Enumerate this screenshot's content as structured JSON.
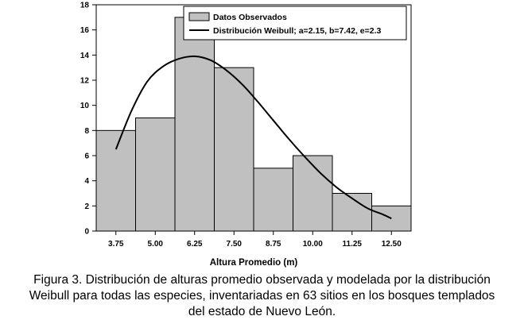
{
  "chart_data": {
    "type": "bar",
    "xlabel": "Altura Promedio (m)",
    "ylabel": "",
    "ylim": [
      0,
      18
    ],
    "yticks": [
      0,
      2,
      4,
      6,
      8,
      10,
      12,
      14,
      16,
      18
    ],
    "categories": [
      "3.75",
      "5.00",
      "6.25",
      "7.50",
      "8.75",
      "10.00",
      "11.25",
      "12.50"
    ],
    "grid": false,
    "legend_position": "top-right",
    "series": [
      {
        "name": "Datos Observados",
        "kind": "bar",
        "color": "#c0c0c0",
        "values": [
          8,
          9,
          17,
          13,
          5,
          6,
          3,
          2
        ]
      },
      {
        "name": "Distribución Weibull; a=2.15, b=7.42, e=2.3",
        "kind": "line",
        "color": "#000000",
        "points": [
          {
            "x": 3.75,
            "y": 6.5
          },
          {
            "x": 4.25,
            "y": 9.6
          },
          {
            "x": 4.75,
            "y": 11.9
          },
          {
            "x": 5.25,
            "y": 13.1
          },
          {
            "x": 5.75,
            "y": 13.7
          },
          {
            "x": 6.25,
            "y": 13.9
          },
          {
            "x": 6.75,
            "y": 13.6
          },
          {
            "x": 7.25,
            "y": 12.8
          },
          {
            "x": 7.75,
            "y": 11.7
          },
          {
            "x": 8.25,
            "y": 10.3
          },
          {
            "x": 8.75,
            "y": 8.8
          },
          {
            "x": 9.25,
            "y": 7.3
          },
          {
            "x": 9.75,
            "y": 5.9
          },
          {
            "x": 10.25,
            "y": 4.6
          },
          {
            "x": 10.75,
            "y": 3.5
          },
          {
            "x": 11.25,
            "y": 2.6
          },
          {
            "x": 11.75,
            "y": 1.8
          },
          {
            "x": 12.25,
            "y": 1.3
          },
          {
            "x": 12.5,
            "y": 1.0
          }
        ]
      }
    ]
  },
  "caption": {
    "line1": "Figura 3. Distribución de alturas promedio observada y modelada por la distribución",
    "line2": "Weibull para todas las especies, inventariadas en 63 sitios en los bosques templados",
    "line3": "del estado de Nuevo León."
  }
}
